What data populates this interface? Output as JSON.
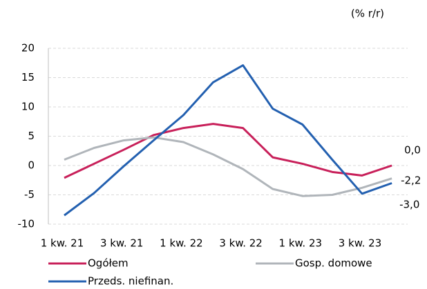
{
  "chart_data": {
    "type": "line",
    "subtitle": "(% r/r)",
    "categories": [
      "1 kw. 21",
      null,
      "3 kw. 21",
      null,
      "1 kw. 22",
      null,
      "3 kw. 22",
      null,
      "1 kw. 23",
      null,
      "3 kw. 23",
      null
    ],
    "series": [
      {
        "name": "Ogółem",
        "color": "#c8205a",
        "values": [
          -2.1,
          0.3,
          2.7,
          5.2,
          6.4,
          7.1,
          6.4,
          1.4,
          0.3,
          -1.1,
          -1.7,
          0.0
        ],
        "value_labels": [
          null,
          null,
          null,
          null,
          null,
          null,
          null,
          null,
          null,
          null,
          null,
          "0,0"
        ]
      },
      {
        "name": "Gosp. domowe",
        "color": "#b0b5ba",
        "values": [
          1.0,
          3.0,
          4.3,
          4.8,
          4.0,
          1.9,
          -0.6,
          -4.0,
          -5.2,
          -5.0,
          -3.8,
          -2.2
        ],
        "value_labels": [
          null,
          null,
          null,
          null,
          null,
          null,
          null,
          null,
          null,
          null,
          null,
          "-2,2"
        ]
      },
      {
        "name": "Przeds. niefinan.",
        "color": "#2360b0",
        "values": [
          -8.5,
          -4.7,
          -0.1,
          4.3,
          8.6,
          14.2,
          17.1,
          9.7,
          7.0,
          1.0,
          -4.8,
          -3.0
        ],
        "value_labels": [
          null,
          null,
          null,
          null,
          null,
          null,
          null,
          null,
          null,
          null,
          null,
          "-3,0"
        ]
      }
    ],
    "ylim": [
      -10,
      20
    ],
    "yticks": [
      -10,
      -5,
      0,
      5,
      10,
      15,
      20
    ],
    "grid": true
  }
}
